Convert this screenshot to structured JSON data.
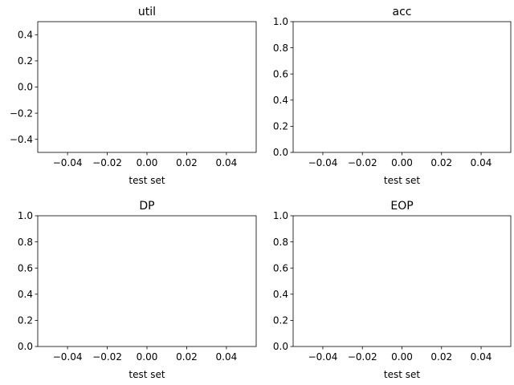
{
  "chart_data": [
    {
      "type": "line",
      "title": "util",
      "xlabel": "test set",
      "ylabel": "",
      "series": [],
      "xlim": [
        -0.055,
        0.055
      ],
      "ylim": [
        -0.5,
        0.5
      ],
      "xticks": [
        "−0.04",
        "−0.02",
        "0.00",
        "0.02",
        "0.04"
      ],
      "xtick_values": [
        -0.04,
        -0.02,
        0.0,
        0.02,
        0.04
      ],
      "yticks": [
        "−0.4",
        "−0.2",
        "0.0",
        "0.2",
        "0.4"
      ],
      "ytick_values": [
        -0.4,
        -0.2,
        0.0,
        0.2,
        0.4
      ],
      "grid": false
    },
    {
      "type": "line",
      "title": "acc",
      "xlabel": "test set",
      "ylabel": "",
      "series": [],
      "xlim": [
        -0.055,
        0.055
      ],
      "ylim": [
        0.0,
        1.0
      ],
      "xticks": [
        "−0.04",
        "−0.02",
        "0.00",
        "0.02",
        "0.04"
      ],
      "xtick_values": [
        -0.04,
        -0.02,
        0.0,
        0.02,
        0.04
      ],
      "yticks": [
        "0.0",
        "0.2",
        "0.4",
        "0.6",
        "0.8",
        "1.0"
      ],
      "ytick_values": [
        0.0,
        0.2,
        0.4,
        0.6,
        0.8,
        1.0
      ],
      "grid": false
    },
    {
      "type": "line",
      "title": "DP",
      "xlabel": "test set",
      "ylabel": "",
      "series": [],
      "xlim": [
        -0.055,
        0.055
      ],
      "ylim": [
        0.0,
        1.0
      ],
      "xticks": [
        "−0.04",
        "−0.02",
        "0.00",
        "0.02",
        "0.04"
      ],
      "xtick_values": [
        -0.04,
        -0.02,
        0.0,
        0.02,
        0.04
      ],
      "yticks": [
        "0.0",
        "0.2",
        "0.4",
        "0.6",
        "0.8",
        "1.0"
      ],
      "ytick_values": [
        0.0,
        0.2,
        0.4,
        0.6,
        0.8,
        1.0
      ],
      "grid": false
    },
    {
      "type": "line",
      "title": "EOP",
      "xlabel": "test set",
      "ylabel": "",
      "series": [],
      "xlim": [
        -0.055,
        0.055
      ],
      "ylim": [
        0.0,
        1.0
      ],
      "xticks": [
        "−0.04",
        "−0.02",
        "0.00",
        "0.02",
        "0.04"
      ],
      "xtick_values": [
        -0.04,
        -0.02,
        0.0,
        0.02,
        0.04
      ],
      "yticks": [
        "0.0",
        "0.2",
        "0.4",
        "0.6",
        "0.8",
        "1.0"
      ],
      "ytick_values": [
        0.0,
        0.2,
        0.4,
        0.6,
        0.8,
        1.0
      ],
      "grid": false
    }
  ]
}
